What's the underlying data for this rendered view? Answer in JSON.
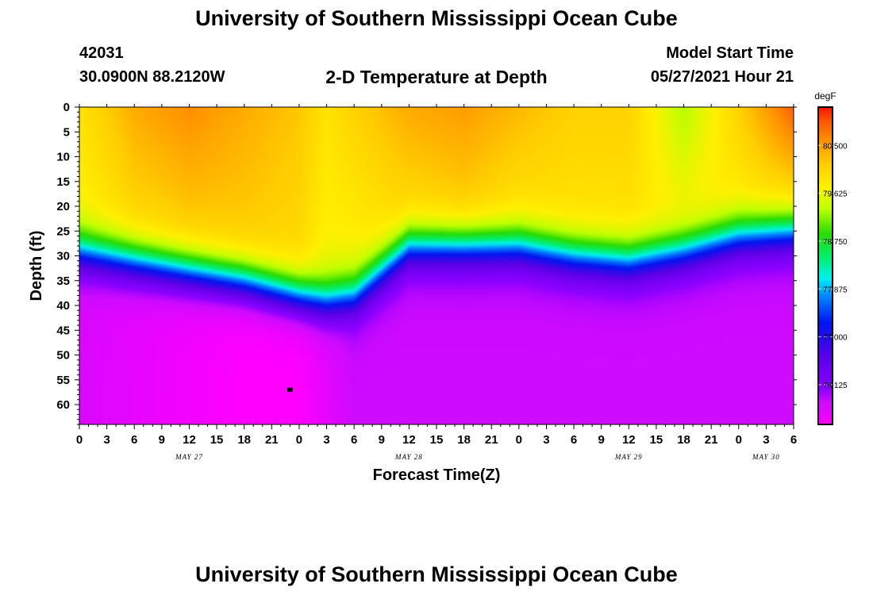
{
  "header": {
    "title": "University of Southern Mississippi Ocean Cube",
    "station_id": "42031",
    "station_location": "30.0900N  88.2120W",
    "plot_title": "2-D Temperature at Depth",
    "model_label": "Model Start Time",
    "model_time": "05/27/2021 Hour 21"
  },
  "footer": {
    "title": "University of Southern Mississippi Ocean Cube"
  },
  "chart_data": {
    "type": "heatmap",
    "title": "2-D Temperature at Depth",
    "xlabel": "Forecast Time(Z)",
    "ylabel": "Depth (ft)",
    "x_tick_labels": [
      "0",
      "3",
      "6",
      "9",
      "12",
      "15",
      "18",
      "21",
      "0",
      "3",
      "6",
      "9",
      "12",
      "15",
      "18",
      "21",
      "0",
      "3",
      "6",
      "9",
      "12",
      "15",
      "18",
      "21",
      "0",
      "3",
      "6"
    ],
    "x_date_labels": [
      {
        "label": "MAY 27",
        "hour_index": 12
      },
      {
        "label": "MAY 28",
        "hour_index": 36
      },
      {
        "label": "MAY 29",
        "hour_index": 60
      },
      {
        "label": "MAY 30",
        "hour_index": 75
      }
    ],
    "xlim_hours": [
      0,
      78
    ],
    "y_tick_labels": [
      "0",
      "5",
      "10",
      "15",
      "20",
      "25",
      "30",
      "35",
      "40",
      "45",
      "50",
      "55",
      "60"
    ],
    "ylim_ft": [
      0,
      64
    ],
    "y_inverted": true,
    "colorbar": {
      "unit": "degF",
      "tick_labels": [
        "80.500",
        "79.625",
        "78.750",
        "77.875",
        "77.000",
        "76.125"
      ],
      "tick_values": [
        80.5,
        79.625,
        78.75,
        77.875,
        77.0,
        76.125
      ],
      "range": [
        75.4,
        81.2
      ]
    },
    "time_hours": [
      0,
      6,
      12,
      18,
      24,
      27,
      30,
      36,
      42,
      48,
      54,
      60,
      66,
      72,
      78
    ],
    "thermocline_depth_ft": [
      29,
      31,
      33,
      35,
      38,
      39,
      38,
      28,
      28,
      28,
      30,
      31,
      29,
      26,
      25
    ],
    "surface_temp_f": [
      79.9,
      80.4,
      80.6,
      80.4,
      80.2,
      79.9,
      80.1,
      80.4,
      80.5,
      80.3,
      80.1,
      80.1,
      79.3,
      80.1,
      80.9
    ],
    "mixed_layer_temp_f": [
      79.7,
      80.0,
      80.1,
      80.1,
      80.0,
      79.7,
      79.7,
      80.0,
      80.1,
      79.9,
      79.9,
      79.9,
      79.8,
      79.8,
      80.0
    ],
    "deep_temp_f": [
      75.7,
      75.6,
      75.5,
      75.4,
      75.4,
      75.6,
      75.8,
      75.8,
      75.8,
      75.8,
      75.8,
      75.8,
      75.8,
      75.8,
      75.8
    ],
    "marker": {
      "hour": 23,
      "depth_ft": 57
    }
  }
}
